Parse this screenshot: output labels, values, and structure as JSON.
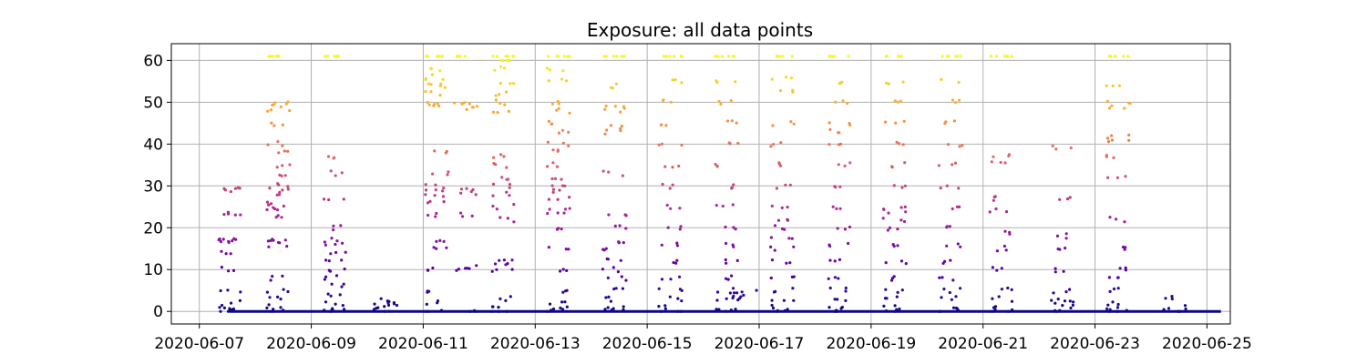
{
  "chart_data": {
    "type": "scatter",
    "title": "Exposure: all data points",
    "xlabel": "",
    "ylabel": "",
    "x_axis": "date",
    "xlim": [
      "2020-06-06T12:00",
      "2020-06-25T10:00"
    ],
    "ylim": [
      -3,
      64
    ],
    "x_ticks": [
      "2020-06-07",
      "2020-06-09",
      "2020-06-11",
      "2020-06-13",
      "2020-06-15",
      "2020-06-17",
      "2020-06-19",
      "2020-06-21",
      "2020-06-23",
      "2020-06-25"
    ],
    "y_ticks": [
      0,
      10,
      20,
      30,
      40,
      50,
      60
    ],
    "grid": true,
    "colormap": "plasma",
    "color_by": "y",
    "colormap_stops": [
      "#0d0887",
      "#6a00a8",
      "#b12a90",
      "#e16462",
      "#fca636",
      "#f0f921"
    ],
    "baseline": {
      "y": 0,
      "x_start": "2020-06-07T13:00",
      "x_end": "2020-06-25T06:00"
    },
    "clusters": [
      {
        "x": "2020-06-07T13:00",
        "y": [
          0,
          0.5,
          1,
          2,
          5,
          10,
          14,
          16.8,
          17,
          17.2,
          23.3,
          23.5,
          29,
          29.2
        ]
      },
      {
        "x": "2020-06-08T10:00",
        "y": [
          0,
          1,
          3,
          5,
          8,
          16,
          17,
          17.5,
          23,
          24,
          25,
          26,
          28,
          29,
          30,
          32,
          35,
          38,
          40,
          45,
          48,
          49,
          50,
          61
        ]
      },
      {
        "x": "2020-06-09T10:00",
        "y": [
          0,
          1,
          2,
          4,
          6,
          8,
          10,
          12,
          14,
          16,
          17,
          20,
          27,
          33,
          37,
          61
        ]
      },
      {
        "x": "2020-06-10T08:00",
        "y": [
          0.5,
          1,
          1.5,
          2,
          2.5
        ]
      },
      {
        "x": "2020-06-11T06:00",
        "y": [
          0,
          2,
          5,
          10,
          15,
          17,
          23,
          26,
          28,
          29,
          30,
          33,
          38,
          49,
          50,
          52,
          54,
          55,
          56,
          58,
          61
        ]
      },
      {
        "x": "2020-06-11T18:00",
        "y": [
          0,
          10,
          10.5,
          23,
          28.5,
          29,
          48.5,
          49.5,
          50,
          61
        ]
      },
      {
        "x": "2020-06-12T10:00",
        "y": [
          0,
          1,
          3,
          10,
          11,
          12,
          22,
          25,
          28,
          30,
          32,
          35,
          37,
          48,
          50,
          52,
          55,
          58,
          60,
          61
        ]
      },
      {
        "x": "2020-06-13T10:00",
        "y": [
          0,
          1,
          2,
          5,
          10,
          15,
          20,
          23,
          25,
          27,
          29,
          30,
          32,
          35,
          38,
          40,
          43,
          45,
          48,
          50,
          55,
          58,
          61
        ]
      },
      {
        "x": "2020-06-14T10:00",
        "y": [
          0,
          1,
          3,
          5,
          8,
          10,
          12,
          15,
          17,
          20,
          23,
          33,
          43,
          44,
          48,
          49,
          54,
          61
        ]
      },
      {
        "x": "2020-06-15T10:00",
        "y": [
          0,
          1,
          3,
          5,
          8,
          12,
          16,
          20,
          25,
          30,
          35,
          40,
          45,
          50,
          55,
          61
        ]
      },
      {
        "x": "2020-06-16T10:00",
        "y": [
          0,
          1,
          3,
          5,
          8,
          12,
          16,
          20,
          25,
          30,
          35,
          40,
          45,
          50,
          55,
          61
        ]
      },
      {
        "x": "2020-06-16T18:00",
        "y": [
          3,
          4,
          5
        ]
      },
      {
        "x": "2020-06-17T10:00",
        "y": [
          0,
          1,
          3,
          5,
          8,
          12,
          15,
          18,
          20,
          22,
          25,
          30,
          35,
          40,
          45,
          53,
          56,
          61
        ]
      },
      {
        "x": "2020-06-18T10:00",
        "y": [
          0,
          1,
          3,
          5,
          8,
          12,
          16,
          20,
          25,
          30,
          35,
          40,
          43,
          45,
          50,
          55,
          61
        ]
      },
      {
        "x": "2020-06-19T10:00",
        "y": [
          0,
          1,
          3,
          5,
          8,
          12,
          16,
          20,
          22,
          24,
          25,
          30,
          35,
          40,
          45,
          50,
          55,
          61
        ]
      },
      {
        "x": "2020-06-20T10:00",
        "y": [
          0,
          1,
          3,
          5,
          8,
          12,
          16,
          20,
          25,
          30,
          35,
          40,
          45,
          50,
          55,
          61
        ]
      },
      {
        "x": "2020-06-21T08:00",
        "y": [
          0,
          1,
          3,
          5,
          10,
          15,
          19,
          24,
          27,
          36,
          37,
          61
        ]
      },
      {
        "x": "2020-06-22T10:00",
        "y": [
          0,
          1,
          2,
          3,
          5,
          10,
          15,
          18,
          27,
          39
        ]
      },
      {
        "x": "2020-06-23T10:00",
        "y": [
          0,
          1,
          2,
          5,
          8,
          10,
          15,
          22,
          32,
          37,
          41,
          42,
          49,
          50,
          54,
          61
        ]
      },
      {
        "x": "2020-06-24T10:00",
        "y": [
          0,
          1,
          3.5
        ]
      }
    ]
  }
}
